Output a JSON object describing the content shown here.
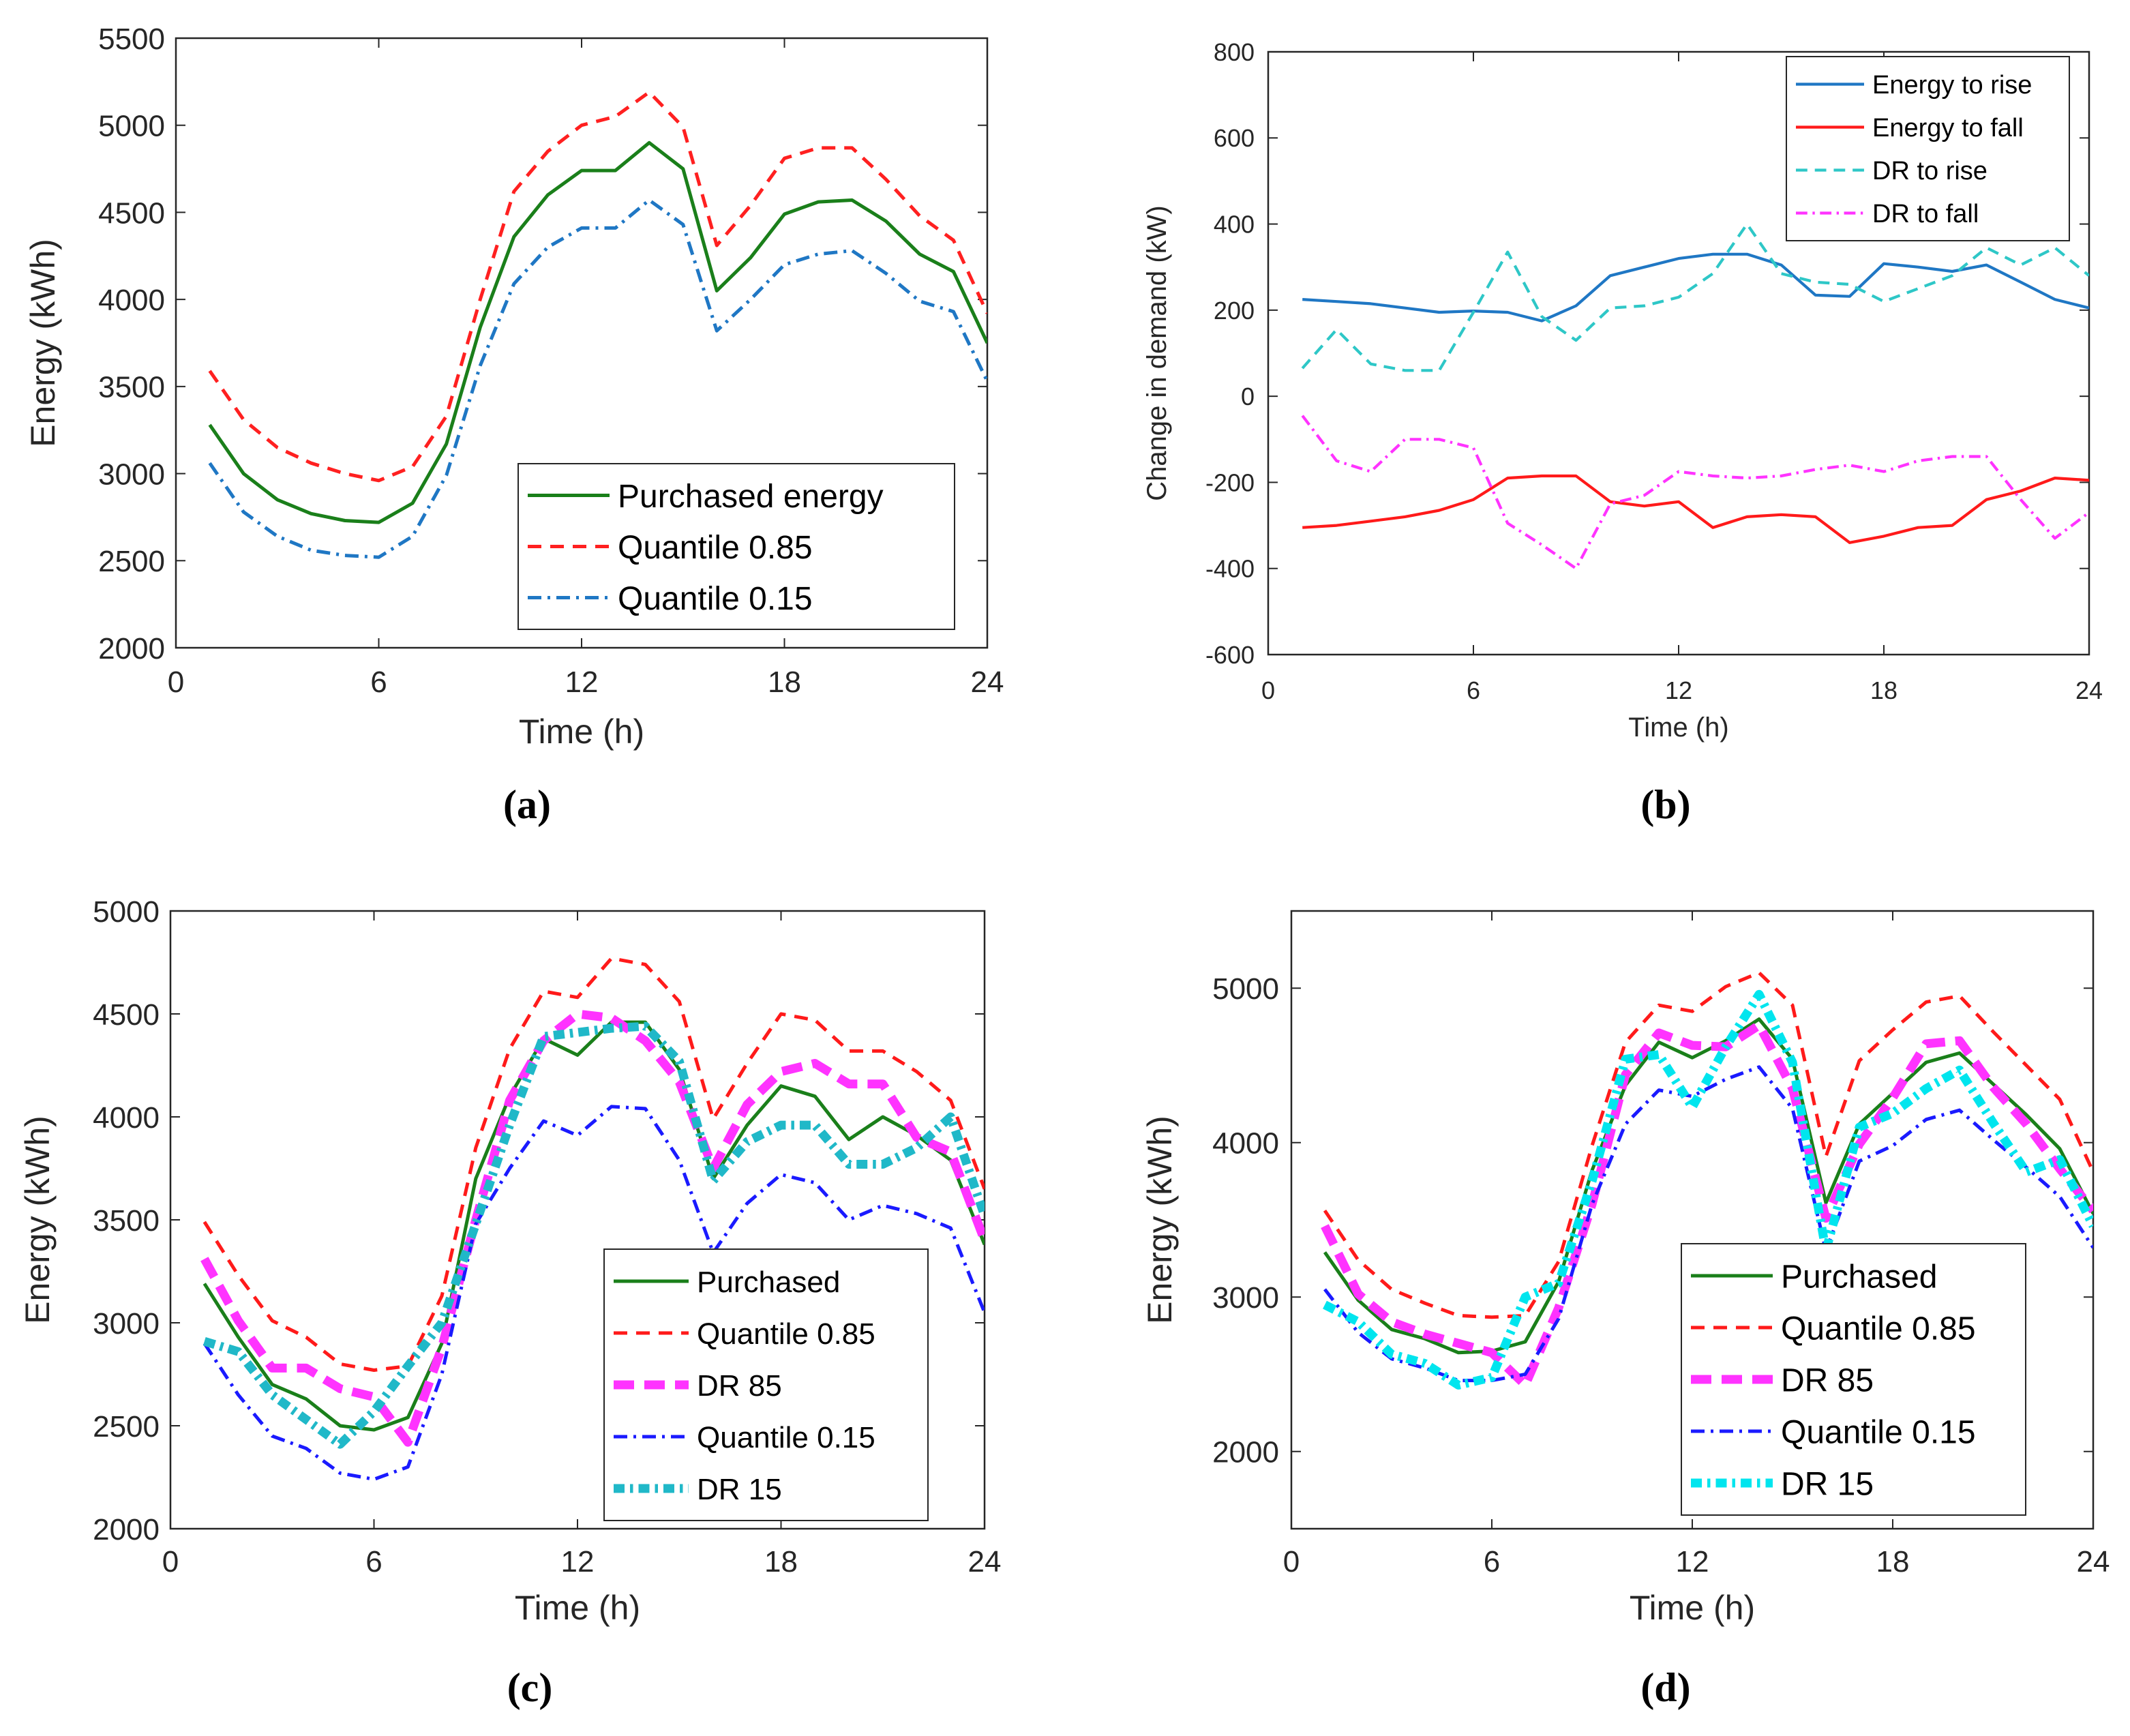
{
  "chart_data": [
    {
      "type": "line",
      "panel": "a",
      "caption": "(a)",
      "xlabel": "Time (h)",
      "ylabel": "Energy (kWh)",
      "xlim": [
        0,
        24
      ],
      "ylim": [
        2000,
        5500
      ],
      "xticks": [
        0,
        6,
        12,
        18,
        24
      ],
      "yticks": [
        2000,
        2500,
        3000,
        3500,
        4000,
        4500,
        5000,
        5500
      ],
      "legend_position": "bottom-right",
      "x": [
        1,
        2,
        3,
        4,
        5,
        6,
        7,
        8,
        9,
        10,
        11,
        12,
        13,
        14,
        15,
        16,
        17,
        18,
        19,
        20,
        21,
        22,
        23,
        24
      ],
      "series": [
        {
          "name": "Purchased energy",
          "color": "#1a7f1a",
          "style": "solid",
          "values": [
            3280,
            3000,
            2850,
            2770,
            2730,
            2720,
            2830,
            3170,
            3840,
            4360,
            4600,
            4740,
            4740,
            4900,
            4750,
            4050,
            4240,
            4490,
            4560,
            4570,
            4450,
            4260,
            4160,
            3750
          ]
        },
        {
          "name": "Quantile 0.85",
          "color": "#ff2020",
          "style": "dashed",
          "values": [
            3590,
            3310,
            3150,
            3060,
            3000,
            2960,
            3040,
            3330,
            4000,
            4620,
            4850,
            5000,
            5050,
            5190,
            4990,
            4310,
            4540,
            4810,
            4870,
            4870,
            4690,
            4480,
            4340,
            3920
          ]
        },
        {
          "name": "Quantile 0.15",
          "color": "#1f77c4",
          "style": "dashdot",
          "values": [
            3060,
            2780,
            2640,
            2560,
            2530,
            2520,
            2640,
            2990,
            3620,
            4090,
            4300,
            4410,
            4410,
            4570,
            4430,
            3820,
            4000,
            4200,
            4260,
            4280,
            4150,
            3990,
            3930,
            3530
          ]
        }
      ]
    },
    {
      "type": "line",
      "panel": "b",
      "caption": "(b)",
      "xlabel": "Time (h)",
      "ylabel": "Change in demand (kW)",
      "xlim": [
        0,
        24
      ],
      "ylim": [
        -600,
        800
      ],
      "xticks": [
        0,
        6,
        12,
        18,
        24
      ],
      "yticks": [
        -600,
        -400,
        -200,
        0,
        200,
        400,
        600,
        800
      ],
      "legend_position": "top-right",
      "x": [
        1,
        2,
        3,
        4,
        5,
        6,
        7,
        8,
        9,
        10,
        11,
        12,
        13,
        14,
        15,
        16,
        17,
        18,
        19,
        20,
        21,
        22,
        23,
        24
      ],
      "series": [
        {
          "name": "Energy to rise",
          "color": "#1f77c4",
          "style": "solid",
          "values": [
            225,
            220,
            215,
            205,
            195,
            198,
            195,
            175,
            210,
            280,
            300,
            320,
            330,
            330,
            305,
            235,
            232,
            308,
            300,
            290,
            305,
            265,
            225,
            205
          ]
        },
        {
          "name": "Energy to fall",
          "color": "#ff1a1a",
          "style": "solid",
          "values": [
            -305,
            -300,
            -290,
            -280,
            -265,
            -240,
            -190,
            -185,
            -185,
            -245,
            -255,
            -245,
            -305,
            -280,
            -275,
            -280,
            -340,
            -325,
            -305,
            -300,
            -240,
            -220,
            -190,
            -195
          ]
        },
        {
          "name": "DR to rise",
          "color": "#2ec7c7",
          "style": "dashed",
          "values": [
            65,
            155,
            75,
            60,
            60,
            195,
            335,
            185,
            130,
            205,
            210,
            230,
            285,
            400,
            285,
            265,
            260,
            220,
            250,
            280,
            345,
            305,
            345,
            280
          ]
        },
        {
          "name": "DR to fall",
          "color": "#ff33ff",
          "style": "dashdot",
          "values": [
            -45,
            -150,
            -175,
            -100,
            -100,
            -120,
            -295,
            -345,
            -400,
            -250,
            -230,
            -175,
            -185,
            -190,
            -185,
            -170,
            -160,
            -175,
            -150,
            -140,
            -140,
            -240,
            -330,
            -270
          ]
        }
      ]
    },
    {
      "type": "line",
      "panel": "c",
      "caption": "(c)",
      "xlabel": "Time (h)",
      "ylabel": "Energy (kWh)",
      "xlim": [
        0,
        24
      ],
      "ylim": [
        2000,
        5000
      ],
      "xticks": [
        0,
        6,
        12,
        18,
        24
      ],
      "yticks": [
        2000,
        2500,
        3000,
        3500,
        4000,
        4500,
        5000
      ],
      "legend_position": "bottom-right",
      "x": [
        1,
        2,
        3,
        4,
        5,
        6,
        7,
        8,
        9,
        10,
        11,
        12,
        13,
        14,
        15,
        16,
        17,
        18,
        19,
        20,
        21,
        22,
        23,
        24
      ],
      "series": [
        {
          "name": "Purchased",
          "color": "#1a7f1a",
          "style": "solid",
          "values": [
            3190,
            2930,
            2700,
            2630,
            2500,
            2480,
            2540,
            2900,
            3700,
            4100,
            4380,
            4300,
            4460,
            4460,
            4230,
            3700,
            3960,
            4150,
            4100,
            3890,
            4000,
            3910,
            3790,
            3380
          ]
        },
        {
          "name": "Quantile 0.85",
          "color": "#ff1a1a",
          "style": "dashed",
          "values": [
            3490,
            3230,
            3010,
            2930,
            2800,
            2770,
            2790,
            3130,
            3850,
            4330,
            4610,
            4580,
            4770,
            4740,
            4560,
            3990,
            4260,
            4500,
            4470,
            4320,
            4320,
            4220,
            4080,
            3650
          ]
        },
        {
          "name": "DR 85",
          "color": "#ff33ff",
          "style": "longdash",
          "values": [
            3310,
            3010,
            2780,
            2780,
            2680,
            2640,
            2420,
            2880,
            3500,
            4080,
            4370,
            4500,
            4480,
            4370,
            4170,
            3750,
            4060,
            4220,
            4260,
            4160,
            4160,
            3900,
            3830,
            3400
          ]
        },
        {
          "name": "Quantile 0.15",
          "color": "#1a1aff",
          "style": "dashdot",
          "values": [
            2900,
            2650,
            2450,
            2390,
            2270,
            2240,
            2300,
            2750,
            3480,
            3750,
            3980,
            3910,
            4050,
            4040,
            3790,
            3340,
            3580,
            3720,
            3680,
            3500,
            3570,
            3530,
            3460,
            3050
          ]
        },
        {
          "name": "DR 15",
          "color": "#20b8c8",
          "style": "thickdashdot",
          "values": [
            2910,
            2860,
            2650,
            2530,
            2410,
            2570,
            2790,
            3000,
            3480,
            3960,
            4390,
            4410,
            4430,
            4440,
            4270,
            3690,
            3880,
            3960,
            3960,
            3770,
            3770,
            3850,
            4000,
            3520
          ]
        }
      ]
    },
    {
      "type": "line",
      "panel": "d",
      "caption": "(d)",
      "xlabel": "Time (h)",
      "ylabel": "Energy (kWh)",
      "xlim": [
        0,
        24
      ],
      "ylim": [
        1500,
        5500
      ],
      "xticks": [
        0,
        6,
        12,
        18,
        24
      ],
      "yticks": [
        2000,
        3000,
        4000,
        5000
      ],
      "legend_position": "bottom-right",
      "x": [
        1,
        2,
        3,
        4,
        5,
        6,
        7,
        8,
        9,
        10,
        11,
        12,
        13,
        14,
        15,
        16,
        17,
        18,
        19,
        20,
        21,
        22,
        23,
        24
      ],
      "series": [
        {
          "name": "Purchased",
          "color": "#1a7f1a",
          "style": "solid",
          "values": [
            3290,
            2980,
            2790,
            2730,
            2640,
            2650,
            2710,
            3100,
            3820,
            4370,
            4650,
            4550,
            4660,
            4800,
            4540,
            3610,
            4120,
            4320,
            4520,
            4580,
            4380,
            4180,
            3960,
            3540
          ]
        },
        {
          "name": "Quantile 0.85",
          "color": "#ff1a1a",
          "style": "dashed",
          "values": [
            3560,
            3240,
            3050,
            2960,
            2880,
            2870,
            2880,
            3230,
            3980,
            4650,
            4890,
            4850,
            5010,
            5100,
            4890,
            3910,
            4530,
            4730,
            4910,
            4950,
            4720,
            4500,
            4280,
            3810
          ]
        },
        {
          "name": "DR 85",
          "color": "#ff33ff",
          "style": "longdash",
          "values": [
            3460,
            3020,
            2840,
            2760,
            2700,
            2640,
            2430,
            2930,
            3600,
            4440,
            4710,
            4630,
            4620,
            4760,
            4350,
            3510,
            3990,
            4290,
            4640,
            4660,
            4360,
            4120,
            3830,
            3560
          ]
        },
        {
          "name": "Quantile 0.15",
          "color": "#1a1aff",
          "style": "dashdot",
          "values": [
            3050,
            2770,
            2600,
            2540,
            2460,
            2460,
            2500,
            2860,
            3600,
            4120,
            4340,
            4300,
            4410,
            4490,
            4220,
            3300,
            3880,
            3980,
            4150,
            4210,
            4020,
            3840,
            3650,
            3320
          ]
        },
        {
          "name": "DR 15",
          "color": "#00e5ee",
          "style": "thickdashdot",
          "values": [
            2950,
            2840,
            2630,
            2570,
            2430,
            2480,
            3000,
            3090,
            3750,
            4540,
            4570,
            4230,
            4620,
            4960,
            4520,
            3300,
            4100,
            4190,
            4350,
            4470,
            4130,
            3810,
            3890,
            3460
          ]
        }
      ]
    }
  ]
}
